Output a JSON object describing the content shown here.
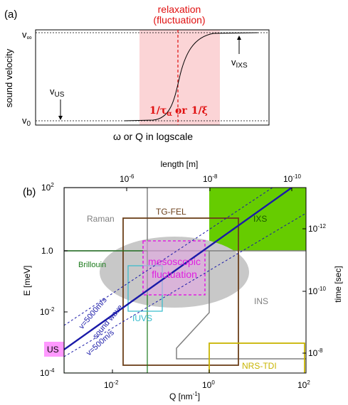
{
  "panel_a": {
    "label": "(a)",
    "relaxation_line1": "relaxation",
    "relaxation_line2": "(fluctuation)",
    "ylabel": "sound velocity",
    "v_inf": "v",
    "v_inf_sub": "∞",
    "v_zero": "v",
    "v_zero_sub": "0",
    "v_us": "v",
    "v_us_sub": "US",
    "v_ixs": "v",
    "v_ixs_sub": "IXS",
    "tau_label": "1/τ",
    "tau_sub": "α",
    "or_label": "or",
    "xi_label": "1/ξ",
    "xlabel": "ω or Q in logscale"
  },
  "panel_b": {
    "label": "(b)",
    "top_axis_label": "length [m]",
    "top_ticks": [
      {
        "base": "10",
        "exp": "-6"
      },
      {
        "base": "10",
        "exp": "-8"
      },
      {
        "base": "10",
        "exp": "-10"
      }
    ],
    "ylabel": "E [meV]",
    "y_ticks": [
      {
        "base": "10",
        "exp": "2"
      },
      {
        "base": "1.0",
        "exp": ""
      },
      {
        "base": "10",
        "exp": "-2"
      },
      {
        "base": "10",
        "exp": "-4"
      }
    ],
    "right_axis_label": "time [sec]",
    "right_ticks": [
      {
        "base": "10",
        "exp": "-12"
      },
      {
        "base": "10",
        "exp": "-10"
      },
      {
        "base": "10",
        "exp": "-8"
      }
    ],
    "xlabel": "Q [nm",
    "xlabel_exp": "-1",
    "xlabel_end": "]",
    "x_ticks": [
      {
        "base": "10",
        "exp": "-2"
      },
      {
        "base": "10",
        "exp": "0"
      },
      {
        "base": "10",
        "exp": "2"
      }
    ],
    "labels": {
      "raman": "Raman",
      "tg_fel": "TG-FEL",
      "ixs": "IXS",
      "brillouin": "Brillouin",
      "ins": "INS",
      "iuvs": "IUVS",
      "us": "US",
      "nrs_tdi": "NRS-TDI",
      "mesoscopic_line1": "mesoscopic",
      "mesoscopic_line2": "fluctuation",
      "v5000": "v=5000m/s",
      "sound_wave": "sound wave",
      "v500": "v=500m/s"
    },
    "colors": {
      "raman": "#808080",
      "tg_fel": "#6b3f1a",
      "ixs": "#66cc00",
      "brillouin": "#1a7a1a",
      "iuvs": "#33bbcc",
      "us_fill": "#ff99ff",
      "nrs_tdi": "#c8b400",
      "mesoscopic": "#e020e0",
      "sound_wave": "#1a1aa8",
      "relaxation": "#e01010"
    }
  }
}
